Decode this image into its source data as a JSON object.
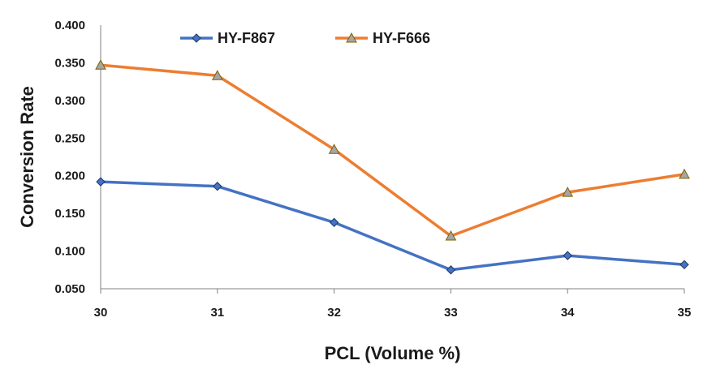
{
  "chart_data": {
    "type": "line",
    "title": "",
    "xlabel": "PCL (Volume %)",
    "ylabel": "Conversion Rate",
    "x": [
      30,
      31,
      32,
      33,
      34,
      35
    ],
    "x_tick_labels": [
      "30",
      "31",
      "32",
      "33",
      "34",
      "35"
    ],
    "y_tick_labels": [
      "0.050",
      "0.100",
      "0.150",
      "0.200",
      "0.250",
      "0.300",
      "0.350",
      "0.400"
    ],
    "xlim": [
      30,
      35
    ],
    "ylim": [
      0.05,
      0.4
    ],
    "grid": false,
    "legend_position": "top",
    "series": [
      {
        "name": "HY-F867",
        "color": "#4472C4",
        "marker": "diamond",
        "values": [
          0.192,
          0.186,
          0.138,
          0.075,
          0.094,
          0.082
        ]
      },
      {
        "name": "HY-F666",
        "color": "#ED7D31",
        "marker": "triangle",
        "values": [
          0.347,
          0.333,
          0.235,
          0.12,
          0.178,
          0.202
        ]
      }
    ]
  }
}
